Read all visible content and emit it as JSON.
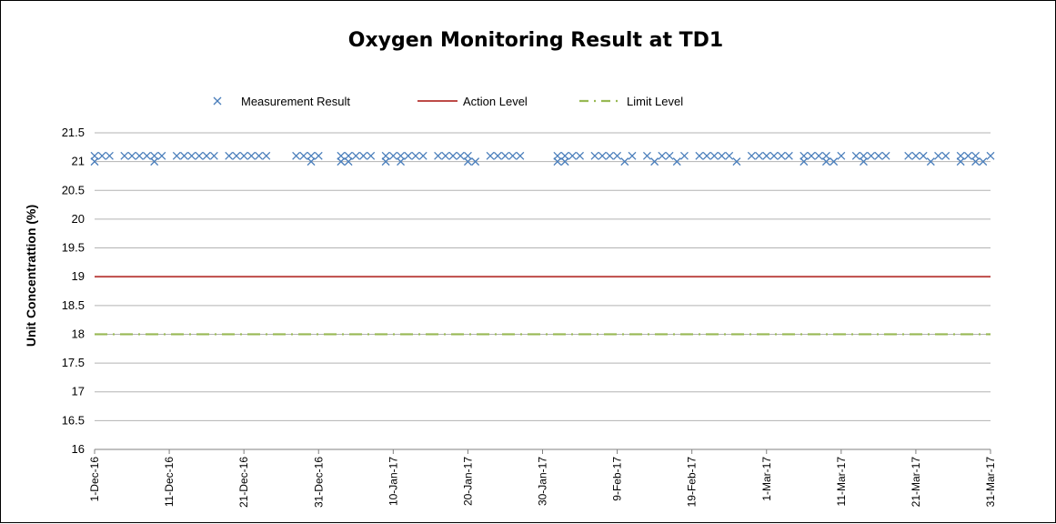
{
  "chart_data": {
    "type": "line",
    "title": "Oxygen Monitoring Result at TD1",
    "ylabel": "Unit Concentrattion (%)",
    "xlabel": "",
    "ylim": [
      16,
      21.5
    ],
    "yticks": [
      "16",
      "16.5",
      "17",
      "17.5",
      "18",
      "18.5",
      "19",
      "19.5",
      "20",
      "20.5",
      "21",
      "21.5"
    ],
    "xlim": [
      "2016-12-01",
      "2017-03-31"
    ],
    "xtick_labels": [
      "1-Dec-16",
      "11-Dec-16",
      "21-Dec-16",
      "31-Dec-16",
      "10-Jan-17",
      "20-Jan-17",
      "30-Jan-17",
      "9-Feb-17",
      "19-Feb-17",
      "1-Mar-17",
      "11-Mar-17",
      "21-Mar-17",
      "31-Mar-17"
    ],
    "grid": "horizontal",
    "legend_position": "top",
    "legend": [
      {
        "label": "Measurement Result",
        "style": "marker-x",
        "color": "#4a7ebb"
      },
      {
        "label": "Action Level",
        "style": "solid",
        "color": "#be4b48"
      },
      {
        "label": "Limit Level",
        "style": "dash-dot",
        "color": "#98b954"
      }
    ],
    "series": [
      {
        "name": "Measurement Result",
        "style": "marker-x",
        "color": "#4a7ebb",
        "points": [
          [
            "2016-12-01",
            21.0
          ],
          [
            "2016-12-01",
            21.1
          ],
          [
            "2016-12-02",
            21.1
          ],
          [
            "2016-12-03",
            21.1
          ],
          [
            "2016-12-05",
            21.1
          ],
          [
            "2016-12-06",
            21.1
          ],
          [
            "2016-12-07",
            21.1
          ],
          [
            "2016-12-08",
            21.1
          ],
          [
            "2016-12-09",
            21.1
          ],
          [
            "2016-12-09",
            21.0
          ],
          [
            "2016-12-10",
            21.1
          ],
          [
            "2016-12-12",
            21.1
          ],
          [
            "2016-12-13",
            21.1
          ],
          [
            "2016-12-14",
            21.1
          ],
          [
            "2016-12-15",
            21.1
          ],
          [
            "2016-12-16",
            21.1
          ],
          [
            "2016-12-17",
            21.1
          ],
          [
            "2016-12-19",
            21.1
          ],
          [
            "2016-12-20",
            21.1
          ],
          [
            "2016-12-21",
            21.1
          ],
          [
            "2016-12-22",
            21.1
          ],
          [
            "2016-12-23",
            21.1
          ],
          [
            "2016-12-24",
            21.1
          ],
          [
            "2016-12-28",
            21.1
          ],
          [
            "2016-12-29",
            21.1
          ],
          [
            "2016-12-30",
            21.1
          ],
          [
            "2016-12-30",
            21.0
          ],
          [
            "2016-12-31",
            21.1
          ],
          [
            "2017-01-03",
            21.0
          ],
          [
            "2017-01-03",
            21.1
          ],
          [
            "2017-01-04",
            21.0
          ],
          [
            "2017-01-04",
            21.1
          ],
          [
            "2017-01-05",
            21.1
          ],
          [
            "2017-01-06",
            21.1
          ],
          [
            "2017-01-07",
            21.1
          ],
          [
            "2017-01-09",
            21.0
          ],
          [
            "2017-01-09",
            21.1
          ],
          [
            "2017-01-10",
            21.1
          ],
          [
            "2017-01-11",
            21.0
          ],
          [
            "2017-01-11",
            21.1
          ],
          [
            "2017-01-12",
            21.1
          ],
          [
            "2017-01-13",
            21.1
          ],
          [
            "2017-01-14",
            21.1
          ],
          [
            "2017-01-16",
            21.1
          ],
          [
            "2017-01-17",
            21.1
          ],
          [
            "2017-01-18",
            21.1
          ],
          [
            "2017-01-19",
            21.1
          ],
          [
            "2017-01-20",
            21.1
          ],
          [
            "2017-01-20",
            21.0
          ],
          [
            "2017-01-21",
            21.0
          ],
          [
            "2017-01-23",
            21.1
          ],
          [
            "2017-01-24",
            21.1
          ],
          [
            "2017-01-25",
            21.1
          ],
          [
            "2017-01-26",
            21.1
          ],
          [
            "2017-01-27",
            21.1
          ],
          [
            "2017-02-01",
            21.0
          ],
          [
            "2017-02-01",
            21.1
          ],
          [
            "2017-02-02",
            21.0
          ],
          [
            "2017-02-02",
            21.1
          ],
          [
            "2017-02-03",
            21.1
          ],
          [
            "2017-02-04",
            21.1
          ],
          [
            "2017-02-06",
            21.1
          ],
          [
            "2017-02-07",
            21.1
          ],
          [
            "2017-02-08",
            21.1
          ],
          [
            "2017-02-09",
            21.1
          ],
          [
            "2017-02-10",
            21.0
          ],
          [
            "2017-02-11",
            21.1
          ],
          [
            "2017-02-13",
            21.1
          ],
          [
            "2017-02-14",
            21.0
          ],
          [
            "2017-02-15",
            21.1
          ],
          [
            "2017-02-16",
            21.1
          ],
          [
            "2017-02-17",
            21.0
          ],
          [
            "2017-02-18",
            21.1
          ],
          [
            "2017-02-20",
            21.1
          ],
          [
            "2017-02-21",
            21.1
          ],
          [
            "2017-02-22",
            21.1
          ],
          [
            "2017-02-23",
            21.1
          ],
          [
            "2017-02-24",
            21.1
          ],
          [
            "2017-02-25",
            21.0
          ],
          [
            "2017-02-27",
            21.1
          ],
          [
            "2017-02-28",
            21.1
          ],
          [
            "2017-03-01",
            21.1
          ],
          [
            "2017-03-02",
            21.1
          ],
          [
            "2017-03-03",
            21.1
          ],
          [
            "2017-03-04",
            21.1
          ],
          [
            "2017-03-06",
            21.0
          ],
          [
            "2017-03-06",
            21.1
          ],
          [
            "2017-03-07",
            21.1
          ],
          [
            "2017-03-08",
            21.1
          ],
          [
            "2017-03-09",
            21.1
          ],
          [
            "2017-03-09",
            21.0
          ],
          [
            "2017-03-10",
            21.0
          ],
          [
            "2017-03-11",
            21.1
          ],
          [
            "2017-03-13",
            21.1
          ],
          [
            "2017-03-14",
            21.0
          ],
          [
            "2017-03-14",
            21.1
          ],
          [
            "2017-03-15",
            21.1
          ],
          [
            "2017-03-16",
            21.1
          ],
          [
            "2017-03-17",
            21.1
          ],
          [
            "2017-03-20",
            21.1
          ],
          [
            "2017-03-21",
            21.1
          ],
          [
            "2017-03-22",
            21.1
          ],
          [
            "2017-03-23",
            21.0
          ],
          [
            "2017-03-24",
            21.1
          ],
          [
            "2017-03-25",
            21.1
          ],
          [
            "2017-03-27",
            21.0
          ],
          [
            "2017-03-27",
            21.1
          ],
          [
            "2017-03-28",
            21.1
          ],
          [
            "2017-03-29",
            21.0
          ],
          [
            "2017-03-29",
            21.1
          ],
          [
            "2017-03-30",
            21.0
          ],
          [
            "2017-03-31",
            21.1
          ]
        ]
      },
      {
        "name": "Action Level",
        "style": "solid",
        "color": "#be4b48",
        "constant": 19
      },
      {
        "name": "Limit Level",
        "style": "dash-dot",
        "color": "#98b954",
        "constant": 18
      }
    ]
  }
}
